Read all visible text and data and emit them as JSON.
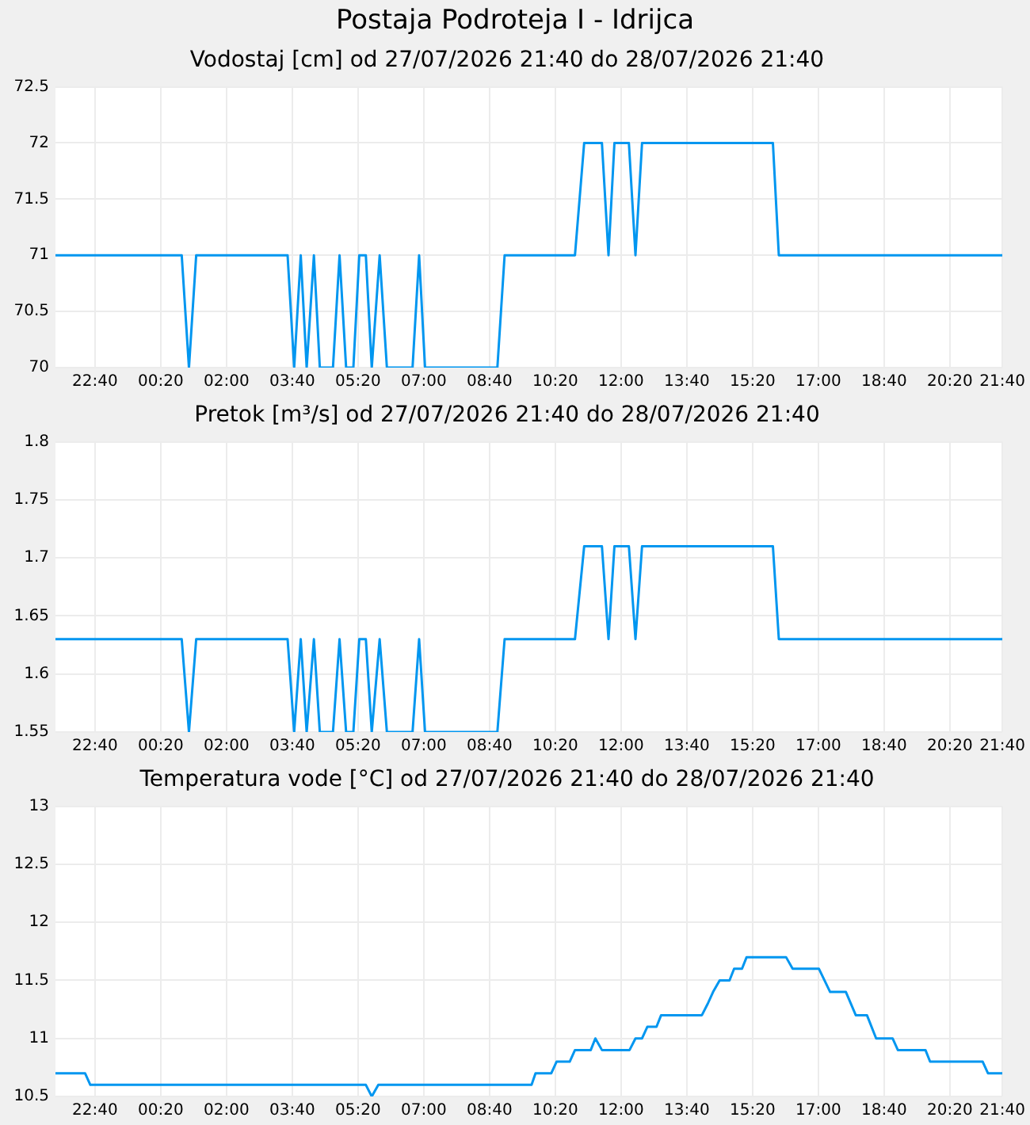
{
  "chart_data": [
    {
      "type": "line",
      "title": "Postaja Podroteja I - Idrijca",
      "subtitle": "Vodostaj [cm] od 27/07/2026 21:40 do 28/07/2026 21:40",
      "color": "#0096f0",
      "grid": true,
      "marker": "none",
      "line_style": "solid",
      "x": [
        "2026-07-27T21:40",
        "2026-07-28T00:52",
        "2026-07-28T01:03",
        "2026-07-28T01:14",
        "2026-07-28T03:33",
        "2026-07-28T03:43",
        "2026-07-28T03:53",
        "2026-07-28T04:02",
        "2026-07-28T04:13",
        "2026-07-28T04:22",
        "2026-07-28T04:42",
        "2026-07-28T04:52",
        "2026-07-28T05:02",
        "2026-07-28T05:13",
        "2026-07-28T05:22",
        "2026-07-28T05:32",
        "2026-07-28T05:41",
        "2026-07-28T05:53",
        "2026-07-28T06:04",
        "2026-07-28T06:43",
        "2026-07-28T06:53",
        "2026-07-28T07:02",
        "2026-07-28T08:52",
        "2026-07-28T09:03",
        "2026-07-28T10:50",
        "2026-07-28T11:04",
        "2026-07-28T11:31",
        "2026-07-28T11:41",
        "2026-07-28T11:50",
        "2026-07-28T12:12",
        "2026-07-28T12:22",
        "2026-07-28T12:32",
        "2026-07-28T15:51",
        "2026-07-28T16:00",
        "2026-07-28T21:40"
      ],
      "values": [
        71,
        71,
        70,
        71,
        71,
        70,
        71,
        70,
        71,
        70,
        70,
        71,
        70,
        70,
        71,
        71,
        70,
        71,
        70,
        70,
        71,
        70,
        70,
        71,
        71,
        72,
        72,
        71,
        72,
        72,
        71,
        72,
        72,
        71,
        71
      ],
      "xlim": [
        "2026-07-27T21:40",
        "2026-07-28T21:40"
      ],
      "xticks": [
        {
          "value": "2026-07-27T22:40",
          "label": "22:40"
        },
        {
          "value": "2026-07-28T00:20",
          "label": "00:20"
        },
        {
          "value": "2026-07-28T02:00",
          "label": "02:00"
        },
        {
          "value": "2026-07-28T03:40",
          "label": "03:40"
        },
        {
          "value": "2026-07-28T05:20",
          "label": "05:20"
        },
        {
          "value": "2026-07-28T07:00",
          "label": "07:00"
        },
        {
          "value": "2026-07-28T08:40",
          "label": "08:40"
        },
        {
          "value": "2026-07-28T10:20",
          "label": "10:20"
        },
        {
          "value": "2026-07-28T12:00",
          "label": "12:00"
        },
        {
          "value": "2026-07-28T13:40",
          "label": "13:40"
        },
        {
          "value": "2026-07-28T15:20",
          "label": "15:20"
        },
        {
          "value": "2026-07-28T17:00",
          "label": "17:00"
        },
        {
          "value": "2026-07-28T18:40",
          "label": "18:40"
        },
        {
          "value": "2026-07-28T20:20",
          "label": "20:20"
        },
        {
          "value": "2026-07-28T21:40",
          "label": "21:40"
        }
      ],
      "ylim": [
        70,
        72.5
      ],
      "yticks": [
        70,
        70.5,
        71,
        71.5,
        72,
        72.5
      ]
    },
    {
      "type": "line",
      "title": "Pretok [m³/s] od 27/07/2026 21:40 do 28/07/2026 21:40",
      "color": "#0096f0",
      "grid": true,
      "marker": "none",
      "line_style": "solid",
      "x": [
        "2026-07-27T21:40",
        "2026-07-28T00:52",
        "2026-07-28T01:03",
        "2026-07-28T01:14",
        "2026-07-28T03:33",
        "2026-07-28T03:43",
        "2026-07-28T03:53",
        "2026-07-28T04:02",
        "2026-07-28T04:13",
        "2026-07-28T04:22",
        "2026-07-28T04:42",
        "2026-07-28T04:52",
        "2026-07-28T05:02",
        "2026-07-28T05:13",
        "2026-07-28T05:22",
        "2026-07-28T05:32",
        "2026-07-28T05:41",
        "2026-07-28T05:53",
        "2026-07-28T06:04",
        "2026-07-28T06:43",
        "2026-07-28T06:53",
        "2026-07-28T07:02",
        "2026-07-28T08:52",
        "2026-07-28T09:03",
        "2026-07-28T10:50",
        "2026-07-28T11:04",
        "2026-07-28T11:31",
        "2026-07-28T11:41",
        "2026-07-28T11:50",
        "2026-07-28T12:12",
        "2026-07-28T12:22",
        "2026-07-28T12:32",
        "2026-07-28T15:51",
        "2026-07-28T16:00",
        "2026-07-28T21:40"
      ],
      "values": [
        1.63,
        1.63,
        1.55,
        1.63,
        1.63,
        1.55,
        1.63,
        1.55,
        1.63,
        1.55,
        1.55,
        1.63,
        1.55,
        1.55,
        1.63,
        1.63,
        1.55,
        1.63,
        1.55,
        1.55,
        1.63,
        1.55,
        1.55,
        1.63,
        1.63,
        1.71,
        1.71,
        1.63,
        1.71,
        1.71,
        1.63,
        1.71,
        1.71,
        1.63,
        1.63
      ],
      "xlim": [
        "2026-07-27T21:40",
        "2026-07-28T21:40"
      ],
      "xticks": [
        {
          "value": "2026-07-27T22:40",
          "label": "22:40"
        },
        {
          "value": "2026-07-28T00:20",
          "label": "00:20"
        },
        {
          "value": "2026-07-28T02:00",
          "label": "02:00"
        },
        {
          "value": "2026-07-28T03:40",
          "label": "03:40"
        },
        {
          "value": "2026-07-28T05:20",
          "label": "05:20"
        },
        {
          "value": "2026-07-28T07:00",
          "label": "07:00"
        },
        {
          "value": "2026-07-28T08:40",
          "label": "08:40"
        },
        {
          "value": "2026-07-28T10:20",
          "label": "10:20"
        },
        {
          "value": "2026-07-28T12:00",
          "label": "12:00"
        },
        {
          "value": "2026-07-28T13:40",
          "label": "13:40"
        },
        {
          "value": "2026-07-28T15:20",
          "label": "15:20"
        },
        {
          "value": "2026-07-28T17:00",
          "label": "17:00"
        },
        {
          "value": "2026-07-28T18:40",
          "label": "18:40"
        },
        {
          "value": "2026-07-28T20:20",
          "label": "20:20"
        },
        {
          "value": "2026-07-28T21:40",
          "label": "21:40"
        }
      ],
      "ylim": [
        1.55,
        1.8
      ],
      "yticks": [
        1.55,
        1.6,
        1.65,
        1.7,
        1.75,
        1.8
      ]
    },
    {
      "type": "line",
      "title": "Temperatura vode [°C] od 27/07/2026 21:40 do 28/07/2026 21:40",
      "color": "#0096f0",
      "grid": true,
      "marker": "none",
      "line_style": "solid",
      "x": [
        "2026-07-27T21:40",
        "2026-07-27T22:25",
        "2026-07-27T22:33",
        "2026-07-28T05:32",
        "2026-07-28T05:41",
        "2026-07-28T05:51",
        "2026-07-28T09:44",
        "2026-07-28T09:50",
        "2026-07-28T10:14",
        "2026-07-28T10:22",
        "2026-07-28T10:42",
        "2026-07-28T10:50",
        "2026-07-28T11:14",
        "2026-07-28T11:21",
        "2026-07-28T11:31",
        "2026-07-28T12:13",
        "2026-07-28T12:22",
        "2026-07-28T12:32",
        "2026-07-28T12:40",
        "2026-07-28T12:54",
        "2026-07-28T13:01",
        "2026-07-28T14:03",
        "2026-07-28T14:12",
        "2026-07-28T14:20",
        "2026-07-28T14:30",
        "2026-07-28T14:45",
        "2026-07-28T14:52",
        "2026-07-28T15:04",
        "2026-07-28T15:11",
        "2026-07-28T16:11",
        "2026-07-28T16:21",
        "2026-07-28T17:01",
        "2026-07-28T17:18",
        "2026-07-28T17:42",
        "2026-07-28T17:57",
        "2026-07-28T18:14",
        "2026-07-28T18:28",
        "2026-07-28T18:53",
        "2026-07-28T19:01",
        "2026-07-28T19:43",
        "2026-07-28T19:50",
        "2026-07-28T21:10",
        "2026-07-28T21:18",
        "2026-07-28T21:40"
      ],
      "values": [
        10.7,
        10.7,
        10.6,
        10.6,
        10.5,
        10.6,
        10.6,
        10.7,
        10.7,
        10.8,
        10.8,
        10.9,
        10.9,
        11.0,
        10.9,
        10.9,
        11.0,
        11.0,
        11.1,
        11.1,
        11.2,
        11.2,
        11.3,
        11.4,
        11.5,
        11.5,
        11.6,
        11.6,
        11.7,
        11.7,
        11.6,
        11.6,
        11.4,
        11.4,
        11.2,
        11.2,
        11.0,
        11.0,
        10.9,
        10.9,
        10.8,
        10.8,
        10.7,
        10.7
      ],
      "xlim": [
        "2026-07-27T21:40",
        "2026-07-28T21:40"
      ],
      "xticks": [
        {
          "value": "2026-07-27T22:40",
          "label": "22:40"
        },
        {
          "value": "2026-07-28T00:20",
          "label": "00:20"
        },
        {
          "value": "2026-07-28T02:00",
          "label": "02:00"
        },
        {
          "value": "2026-07-28T03:40",
          "label": "03:40"
        },
        {
          "value": "2026-07-28T05:20",
          "label": "05:20"
        },
        {
          "value": "2026-07-28T07:00",
          "label": "07:00"
        },
        {
          "value": "2026-07-28T08:40",
          "label": "08:40"
        },
        {
          "value": "2026-07-28T10:20",
          "label": "10:20"
        },
        {
          "value": "2026-07-28T12:00",
          "label": "12:00"
        },
        {
          "value": "2026-07-28T13:40",
          "label": "13:40"
        },
        {
          "value": "2026-07-28T15:20",
          "label": "15:20"
        },
        {
          "value": "2026-07-28T17:00",
          "label": "17:00"
        },
        {
          "value": "2026-07-28T18:40",
          "label": "18:40"
        },
        {
          "value": "2026-07-28T20:20",
          "label": "20:20"
        },
        {
          "value": "2026-07-28T21:40",
          "label": "21:40"
        }
      ],
      "ylim": [
        10.5,
        13
      ],
      "yticks": [
        10.5,
        11,
        11.5,
        12,
        12.5,
        13
      ]
    }
  ]
}
